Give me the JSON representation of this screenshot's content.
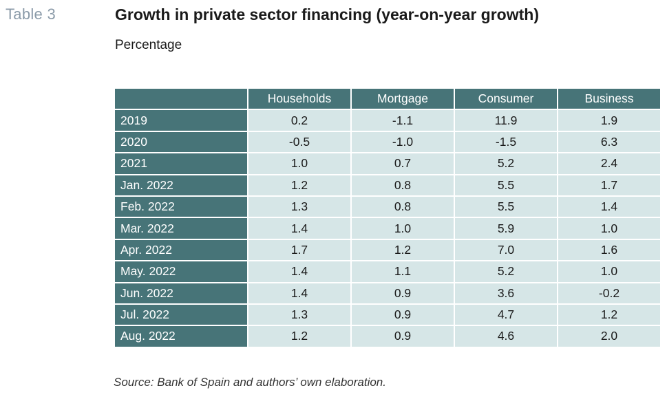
{
  "header": {
    "table_number": "Table 3",
    "title": "Growth in private sector financing (year-on-year growth)",
    "subtitle": "Percentage"
  },
  "table": {
    "columns": [
      "Households",
      "Mortgage",
      "Consumer",
      "Business"
    ],
    "rows": [
      {
        "label": "2019",
        "values": [
          "0.2",
          "-1.1",
          "11.9",
          "1.9"
        ]
      },
      {
        "label": "2020",
        "values": [
          "-0.5",
          "-1.0",
          "-1.5",
          "6.3"
        ]
      },
      {
        "label": "2021",
        "values": [
          "1.0",
          "0.7",
          "5.2",
          "2.4"
        ]
      },
      {
        "label": "Jan. 2022",
        "values": [
          "1.2",
          "0.8",
          "5.5",
          "1.7"
        ]
      },
      {
        "label": "Feb. 2022",
        "values": [
          "1.3",
          "0.8",
          "5.5",
          "1.4"
        ]
      },
      {
        "label": "Mar. 2022",
        "values": [
          "1.4",
          "1.0",
          "5.9",
          "1.0"
        ]
      },
      {
        "label": "Apr. 2022",
        "values": [
          "1.7",
          "1.2",
          "7.0",
          "1.6"
        ]
      },
      {
        "label": "May. 2022",
        "values": [
          "1.4",
          "1.1",
          "5.2",
          "1.0"
        ]
      },
      {
        "label": "Jun. 2022",
        "values": [
          "1.4",
          "0.9",
          "3.6",
          "-0.2"
        ]
      },
      {
        "label": "Jul. 2022",
        "values": [
          "1.3",
          "0.9",
          "4.7",
          "1.2"
        ]
      },
      {
        "label": "Aug. 2022",
        "values": [
          "1.2",
          "0.9",
          "4.6",
          "2.0"
        ]
      }
    ]
  },
  "footer": {
    "source": "Source: Bank of Spain and authors’ own elaboration."
  },
  "colors": {
    "header_bg": "#477478",
    "cell_bg": "#d6e6e7",
    "table_number": "#8a9aa8"
  }
}
